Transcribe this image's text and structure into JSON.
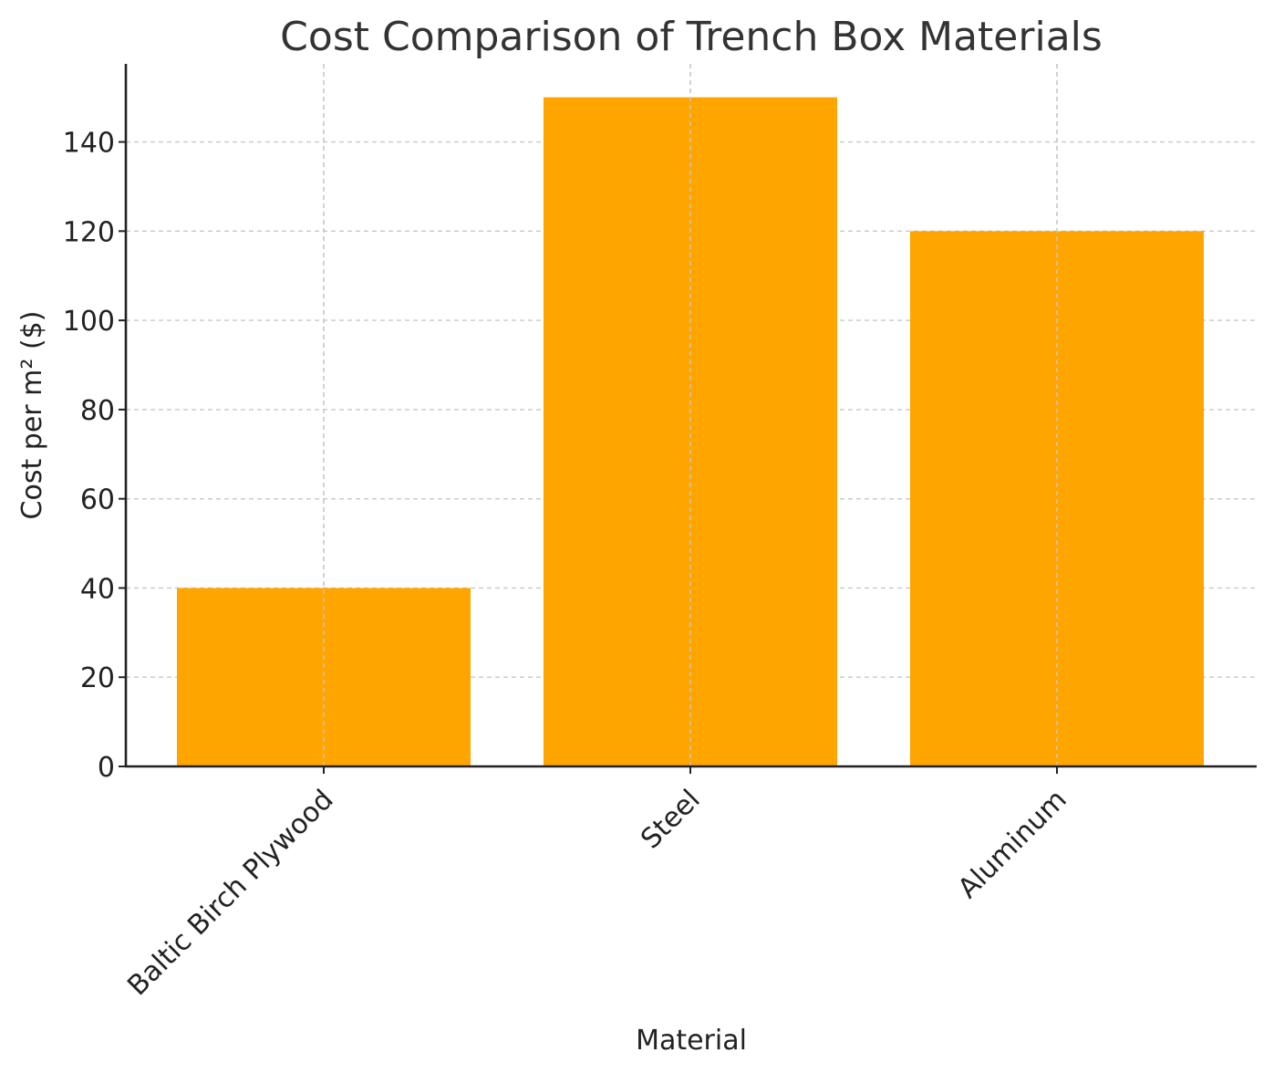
{
  "chart_data": {
    "type": "bar",
    "title": "Cost Comparison of Trench Box Materials",
    "xlabel": "Material",
    "ylabel": "Cost per m² ($)",
    "categories": [
      "Baltic Birch Plywood",
      "Steel",
      "Aluminum"
    ],
    "values": [
      40,
      150,
      120
    ],
    "ylim": [
      0,
      157.5
    ],
    "yticks": [
      0,
      20,
      40,
      60,
      80,
      100,
      120,
      140
    ],
    "bar_color": "#FFA500",
    "grid": true,
    "x_tick_rotation": "45deg",
    "legend": "none"
  }
}
